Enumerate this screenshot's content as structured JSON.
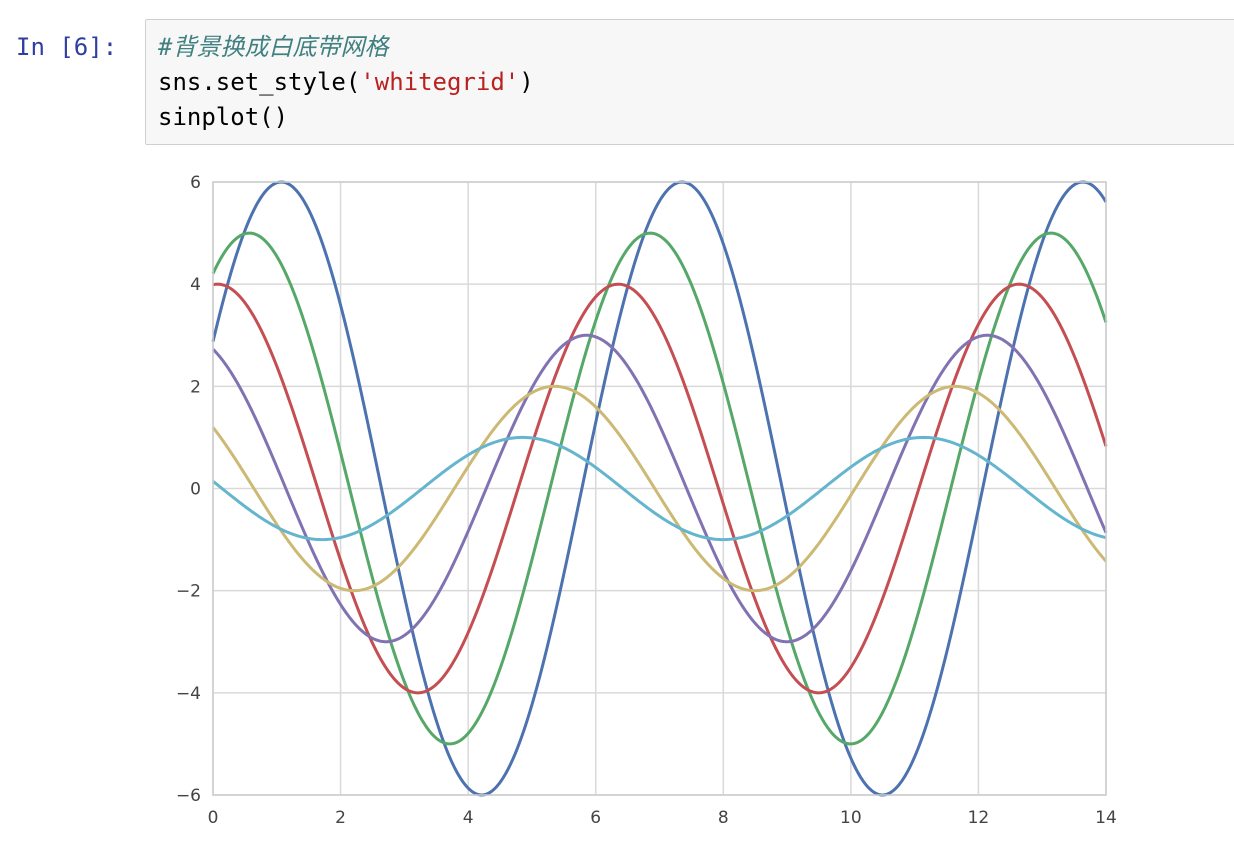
{
  "cell": {
    "prompt": "In [6]:",
    "code": [
      {
        "parts": [
          {
            "text": "#背景换成白底带网格",
            "kind": "comment"
          }
        ]
      },
      {
        "parts": [
          {
            "text": "sns.set_style(",
            "kind": "plain"
          },
          {
            "text": "'whitegrid'",
            "kind": "string"
          },
          {
            "text": ")",
            "kind": "plain"
          }
        ]
      },
      {
        "parts": [
          {
            "text": "sinplot()",
            "kind": "plain"
          }
        ]
      }
    ]
  },
  "chart_data": {
    "type": "line",
    "title": "",
    "xlabel": "",
    "ylabel": "",
    "xlim": [
      0,
      14
    ],
    "ylim": [
      -6,
      6
    ],
    "xticks": [
      0,
      2,
      4,
      6,
      8,
      10,
      12,
      14
    ],
    "yticks": [
      6,
      4,
      2,
      0,
      -2,
      -4,
      -6
    ],
    "ytick_labels": [
      "6",
      "4",
      "2",
      "0",
      "−2",
      "−4",
      "−6"
    ],
    "grid": true,
    "function": "sin(x + i*0.5) * (7 - i)",
    "series": [
      {
        "index": 1,
        "amplitude": 6,
        "phase": 0.5,
        "color": "#4c72b0"
      },
      {
        "index": 2,
        "amplitude": 5,
        "phase": 1.0,
        "color": "#55a868"
      },
      {
        "index": 3,
        "amplitude": 4,
        "phase": 1.5,
        "color": "#c44e52"
      },
      {
        "index": 4,
        "amplitude": 3,
        "phase": 2.0,
        "color": "#8172b2"
      },
      {
        "index": 5,
        "amplitude": 2,
        "phase": 2.5,
        "color": "#ccb974"
      },
      {
        "index": 6,
        "amplitude": 1,
        "phase": 3.0,
        "color": "#64b5cd"
      }
    ]
  }
}
